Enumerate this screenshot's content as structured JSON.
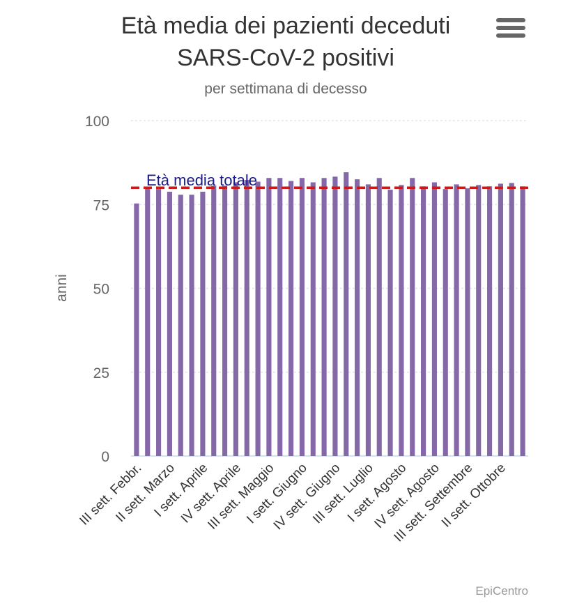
{
  "menu": {
    "icon": "hamburger-menu-icon"
  },
  "credits": "EpiCentro",
  "colors": {
    "bar": "#8468a8",
    "mean_line": "#cc1a1a",
    "mean_label": "#1a1a8c",
    "grid": "#e6e6e6"
  },
  "chart_data": {
    "type": "bar",
    "title_lines": [
      "Età media dei pazienti deceduti",
      "SARS-CoV-2 positivi"
    ],
    "subtitle": "per settimana di decesso",
    "ylabel": "anni",
    "ylim": [
      0,
      100
    ],
    "yticks": [
      "0",
      "25",
      "50",
      "75",
      "100"
    ],
    "xtick_labels": [
      "III sett. Febbr.",
      "II sett. Marzo",
      "I sett. Aprile",
      "IV sett. Aprile",
      "III sett. Maggio",
      "I sett. Giugno",
      "IV sett. Giugno",
      "III sett. Luglio",
      "I sett. Agosto",
      "IV sett. Agosto",
      "III sett. Settembre",
      "II sett. Ottobre"
    ],
    "values": [
      75.3,
      80.2,
      79.6,
      78.8,
      77.9,
      77.9,
      78.8,
      80.6,
      80.6,
      81.6,
      82.3,
      81.8,
      82.9,
      82.9,
      82.0,
      82.9,
      81.6,
      82.9,
      83.3,
      84.6,
      82.5,
      81.0,
      82.9,
      79.4,
      80.8,
      82.9,
      80.4,
      81.6,
      79.6,
      81.0,
      79.8,
      80.8,
      80.4,
      81.2,
      81.4,
      80.4
    ],
    "mean_line": {
      "value": 80,
      "label": "Età media totale"
    }
  }
}
